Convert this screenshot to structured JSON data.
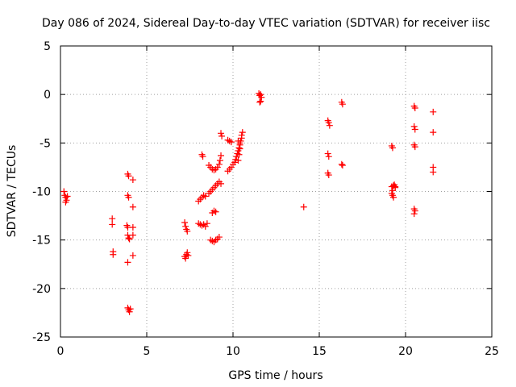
{
  "chart_data": {
    "type": "scatter",
    "title": "Day 086 of 2024, Sidereal Day-to-day VTEC variation (SDTVAR) for receiver iisc",
    "xlabel": "GPS time / hours",
    "ylabel": "SDTVAR / TECUs",
    "xlim": [
      0,
      25
    ],
    "ylim": [
      -25,
      5
    ],
    "xticks": [
      0,
      5,
      10,
      15,
      20,
      25
    ],
    "yticks": [
      -25,
      -20,
      -15,
      -10,
      -5,
      0,
      5
    ],
    "grid": true,
    "marker": "+",
    "color": "#ff0000",
    "series": [
      {
        "name": "SDTVAR",
        "points": [
          [
            0.2,
            -10.0
          ],
          [
            0.25,
            -10.4
          ],
          [
            0.3,
            -10.6
          ],
          [
            0.35,
            -10.9
          ],
          [
            0.4,
            -10.5
          ],
          [
            0.3,
            -11.1
          ],
          [
            3.0,
            -12.8
          ],
          [
            3.0,
            -13.4
          ],
          [
            3.05,
            -16.2
          ],
          [
            3.05,
            -16.5
          ],
          [
            3.9,
            -8.2
          ],
          [
            3.95,
            -8.4
          ],
          [
            3.9,
            -10.4
          ],
          [
            3.95,
            -10.6
          ],
          [
            3.85,
            -13.5
          ],
          [
            3.9,
            -13.7
          ],
          [
            3.9,
            -14.5
          ],
          [
            3.95,
            -14.8
          ],
          [
            4.0,
            -14.9
          ],
          [
            3.9,
            -17.3
          ],
          [
            3.9,
            -22.0
          ],
          [
            3.95,
            -22.2
          ],
          [
            4.0,
            -22.4
          ],
          [
            4.05,
            -22.1
          ],
          [
            4.2,
            -8.8
          ],
          [
            4.2,
            -11.6
          ],
          [
            4.2,
            -13.7
          ],
          [
            4.2,
            -14.5
          ],
          [
            4.2,
            -16.6
          ],
          [
            7.2,
            -13.2
          ],
          [
            7.25,
            -13.6
          ],
          [
            7.3,
            -13.9
          ],
          [
            7.35,
            -14.1
          ],
          [
            7.2,
            -16.7
          ],
          [
            7.25,
            -16.9
          ],
          [
            7.3,
            -16.5
          ],
          [
            7.35,
            -16.3
          ],
          [
            7.4,
            -16.6
          ],
          [
            8.0,
            -11.0
          ],
          [
            8.1,
            -10.8
          ],
          [
            8.2,
            -10.6
          ],
          [
            8.3,
            -10.4
          ],
          [
            8.4,
            -10.5
          ],
          [
            8.0,
            -13.3
          ],
          [
            8.1,
            -13.4
          ],
          [
            8.2,
            -13.5
          ],
          [
            8.3,
            -13.4
          ],
          [
            8.4,
            -13.6
          ],
          [
            8.5,
            -13.3
          ],
          [
            8.2,
            -6.2
          ],
          [
            8.25,
            -6.4
          ],
          [
            8.6,
            -7.3
          ],
          [
            8.7,
            -7.5
          ],
          [
            8.8,
            -7.7
          ],
          [
            8.9,
            -7.8
          ],
          [
            9.0,
            -7.7
          ],
          [
            9.1,
            -7.5
          ],
          [
            9.2,
            -7.2
          ],
          [
            9.25,
            -6.8
          ],
          [
            9.3,
            -6.3
          ],
          [
            8.6,
            -10.2
          ],
          [
            8.7,
            -10.0
          ],
          [
            8.8,
            -9.8
          ],
          [
            8.9,
            -9.6
          ],
          [
            9.0,
            -9.4
          ],
          [
            9.1,
            -9.2
          ],
          [
            9.2,
            -9.0
          ],
          [
            9.3,
            -9.2
          ],
          [
            8.8,
            -12.2
          ],
          [
            8.9,
            -12.0
          ],
          [
            9.0,
            -12.1
          ],
          [
            8.7,
            -15.0
          ],
          [
            8.8,
            -15.1
          ],
          [
            8.9,
            -15.2
          ],
          [
            9.0,
            -15.0
          ],
          [
            9.1,
            -14.9
          ],
          [
            9.2,
            -14.7
          ],
          [
            9.3,
            -4.0
          ],
          [
            9.35,
            -4.3
          ],
          [
            9.7,
            -4.7
          ],
          [
            9.8,
            -4.8
          ],
          [
            9.9,
            -4.9
          ],
          [
            9.7,
            -7.9
          ],
          [
            9.8,
            -7.7
          ],
          [
            9.9,
            -7.5
          ],
          [
            10.0,
            -7.2
          ],
          [
            10.1,
            -7.0
          ],
          [
            10.15,
            -6.7
          ],
          [
            10.2,
            -6.4
          ],
          [
            10.25,
            -6.1
          ],
          [
            10.3,
            -5.8
          ],
          [
            10.35,
            -5.5
          ],
          [
            10.4,
            -5.2
          ],
          [
            10.45,
            -4.8
          ],
          [
            10.5,
            -4.5
          ],
          [
            10.5,
            -4.2
          ],
          [
            10.55,
            -3.9
          ],
          [
            10.3,
            -6.8
          ],
          [
            10.35,
            -6.2
          ],
          [
            10.4,
            -5.6
          ],
          [
            10.3,
            -4.8
          ],
          [
            10.4,
            -5.0
          ],
          [
            11.5,
            0.1
          ],
          [
            11.55,
            -0.1
          ],
          [
            11.6,
            0.0
          ],
          [
            11.65,
            -0.3
          ],
          [
            11.6,
            -0.7
          ],
          [
            11.55,
            -0.8
          ],
          [
            14.1,
            -11.6
          ],
          [
            15.5,
            -2.7
          ],
          [
            15.55,
            -2.9
          ],
          [
            15.6,
            -3.2
          ],
          [
            15.5,
            -6.1
          ],
          [
            15.55,
            -6.4
          ],
          [
            15.5,
            -8.1
          ],
          [
            15.55,
            -8.3
          ],
          [
            16.3,
            -0.8
          ],
          [
            16.35,
            -1.0
          ],
          [
            16.3,
            -7.2
          ],
          [
            16.35,
            -7.3
          ],
          [
            19.2,
            -5.3
          ],
          [
            19.25,
            -5.5
          ],
          [
            19.2,
            -9.5
          ],
          [
            19.25,
            -9.9
          ],
          [
            19.2,
            -10.2
          ],
          [
            19.25,
            -10.4
          ],
          [
            19.3,
            -10.6
          ],
          [
            19.3,
            -9.4
          ],
          [
            19.35,
            -9.3
          ],
          [
            19.4,
            -9.5
          ],
          [
            19.4,
            -9.6
          ],
          [
            20.5,
            -1.2
          ],
          [
            20.55,
            -1.4
          ],
          [
            20.5,
            -3.3
          ],
          [
            20.55,
            -3.6
          ],
          [
            20.5,
            -5.2
          ],
          [
            20.55,
            -5.4
          ],
          [
            20.5,
            -11.8
          ],
          [
            20.55,
            -12.0
          ],
          [
            20.5,
            -12.3
          ],
          [
            21.6,
            -1.8
          ],
          [
            21.6,
            -3.9
          ],
          [
            21.6,
            -7.5
          ],
          [
            21.6,
            -8.0
          ]
        ]
      }
    ]
  }
}
